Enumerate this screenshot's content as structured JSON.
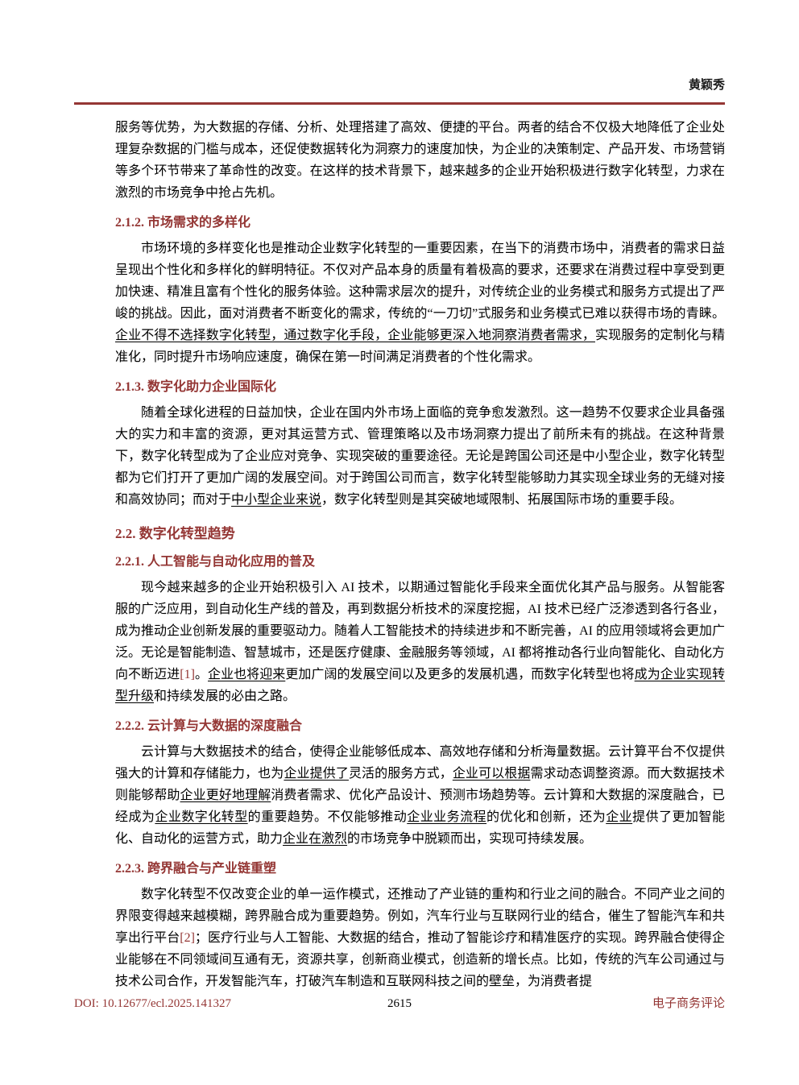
{
  "colors": {
    "accent": "#943634",
    "citation": "#943634",
    "body_text": "#000000"
  },
  "header": {
    "author": "黄颖秀"
  },
  "footer": {
    "doi": "DOI: 10.12677/ecl.2025.141327",
    "page_number": "2615",
    "journal": "电子商务评论"
  },
  "article": {
    "blocks": [
      {
        "kind": "p",
        "indent": false,
        "runs": [
          {
            "t": "服务等优势，为大数据的存储、分析、处理搭建了高效、便捷的平台。两者的结合不仅极大地降低了企业处理复杂数据的门槛与成本，还促使数据转化为洞察力的速度加快，为企业的决策制定、产品开发、市场营销等多个环节带来了革命性的改变。在这样的技术背景下，越来越多的企业开始积极进行数字化转型，力求在激烈的市场竞争中抢占先机。"
          }
        ]
      },
      {
        "kind": "h3",
        "text": "2.1.2. 市场需求的多样化"
      },
      {
        "kind": "p",
        "indent": true,
        "runs": [
          {
            "t": "市场环境的多样变化也是推动企业数字化转型的一重要因素，在当下的消费市场中，消费者的需求日益呈现出个性化和多样化的鲜明特征。不仅对产品本身的质量有着极高的要求，还要求在消费过程中享受到更加快速、精准且富有个性化的服务体验。这种需求层次的提升，对传统企业的业务模式和服务方式提出了严峻的挑战。因此，面对消费者不断变化的需求，传统的“一刀切”式服务和业务模式已难以获得市场的青睐。"
          },
          {
            "t": "企业不得不选择数字化转型，通过数字化手段，企业能够更深入地洞察消费者需求，",
            "u": true
          },
          {
            "t": "实现服务的定制化与精准化，同时提升市场响应速度，确保在第一时间满足消费者的个性化需求。"
          }
        ]
      },
      {
        "kind": "h3",
        "text": "2.1.3. 数字化助力企业国际化"
      },
      {
        "kind": "p",
        "indent": true,
        "runs": [
          {
            "t": "随着全球化进程的日益加快，企业在国内外市场上面临的竞争愈发激烈。这一趋势不仅要求企业具备强大的实力和丰富的资源，更对其运营方式、管理策略以及市场洞察力提出了前所未有的挑战。在这种背景下，数字化转型成为了企业应对竞争、实现突破的重要途径。无论是跨国公司还是中小型企业，数字化转型都为它们打开了更加广阔的发展空间。对于跨国公司而言，数字化转型能够助力其实现全球业务的无缝对接和高效协同；而对于"
          },
          {
            "t": "中小型企业来说",
            "u": true
          },
          {
            "t": "，数字化转型则是其突破地域限制、拓展国际市场的重要手段。"
          }
        ]
      },
      {
        "kind": "h2",
        "text": "2.2. 数字化转型趋势"
      },
      {
        "kind": "h3",
        "text": "2.2.1. 人工智能与自动化应用的普及"
      },
      {
        "kind": "p",
        "indent": true,
        "runs": [
          {
            "t": "现今越来越多的企业开始积极引入 AI 技术，以期通过智能化手段来全面优化其产品与服务。从智能客服的广泛应用，到自动化生产线的普及，再到数据分析技术的深度挖掘，AI 技术已经广泛渗透到各行各业，成为推动企业创新发展的重要驱动力。随着人工智能技术的持续进步和不断完善，AI 的应用领域将会更加广泛。无论是智能制造、智慧城市，还是医疗健康、金融服务等领域，AI 都将推动各行业向智能化、自动化方向不断迈进"
          },
          {
            "t": "[1]",
            "cite": true
          },
          {
            "t": "。"
          },
          {
            "t": "企业也将迎来",
            "u": true
          },
          {
            "t": "更加广阔的发展空间以及更多的发展机遇，而数字化转型也将"
          },
          {
            "t": "成为企业实现转型升级",
            "u": true
          },
          {
            "t": "和持续发展的必由之路。"
          }
        ]
      },
      {
        "kind": "h3",
        "text": "2.2.2. 云计算与大数据的深度融合"
      },
      {
        "kind": "p",
        "indent": true,
        "runs": [
          {
            "t": "云计算与大数据技术的结合，使得企业能够低成本、高效地存储和分析海量数据。云计算平台不仅提供强大的计算和存储能力，也为"
          },
          {
            "t": "企业提供了",
            "u": true
          },
          {
            "t": "灵活的服务方式，"
          },
          {
            "t": "企业可以根据",
            "u": true
          },
          {
            "t": "需求动态调整资源。而大数据技术则能够帮助"
          },
          {
            "t": "企业更好地理解",
            "u": true
          },
          {
            "t": "消费者需求、优化产品设计、预测市场趋势等。云计算和大数据的深度融合，已经成为"
          },
          {
            "t": "企业数字化转型",
            "u": true
          },
          {
            "t": "的重要趋势。不仅能够推动"
          },
          {
            "t": "企业业务流程",
            "u": true
          },
          {
            "t": "的优化和创新，还为"
          },
          {
            "t": "企业",
            "u": true
          },
          {
            "t": "提供了更加智能化、自动化的运营方式，助力"
          },
          {
            "t": "企业在激烈",
            "u": true
          },
          {
            "t": "的市场竞争中脱颖而出，实现可持续发展。"
          }
        ]
      },
      {
        "kind": "h3",
        "text": "2.2.3. 跨界融合与产业链重塑"
      },
      {
        "kind": "p",
        "indent": true,
        "runs": [
          {
            "t": "数字化转型不仅改变企业的单一运作模式，还推动了产业链的重构和行业之间的融合。不同产业之间的界限变得越来越模糊，跨界融合成为重要趋势。例如，汽车行业与互联网行业的结合，催生了智能汽车和共享出行平台"
          },
          {
            "t": "[2]",
            "cite": true
          },
          {
            "t": "；医疗行业与人工智能、大数据的结合，推动了智能诊疗和精准医疗的实现。跨界融合使得企业能够在不同领域间互通有无，资源共享，创新商业模式，创造新的增长点。比如，传统的汽车公司通过与技术公司合作，开发智能汽车，打破汽车制造和互联网科技之间的壁垒，为消费者提"
          }
        ]
      }
    ]
  }
}
